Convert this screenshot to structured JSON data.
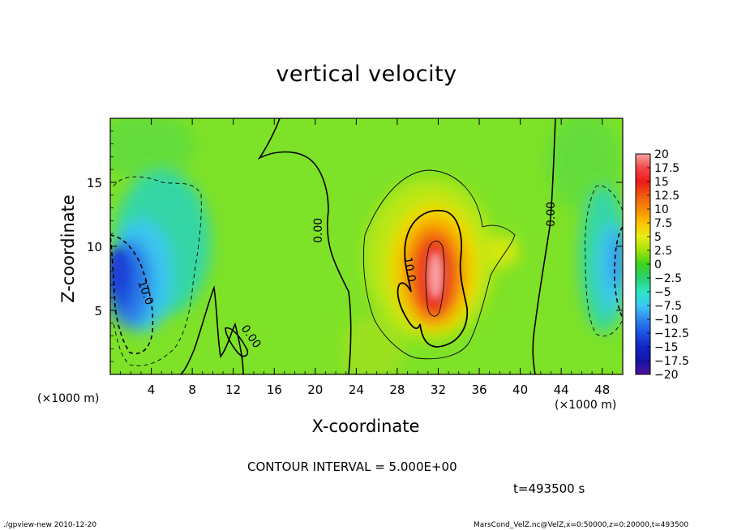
{
  "chart_data": {
    "type": "heatmap",
    "title": "vertical velocity",
    "xlabel": "X-coordinate",
    "ylabel": "Z-coordinate",
    "x_unit_label": "(×1000 m)",
    "x_ticks": [
      4,
      8,
      12,
      16,
      20,
      24,
      28,
      32,
      36,
      40,
      44,
      48
    ],
    "y_ticks": [
      5,
      10,
      15
    ],
    "xlim": [
      0,
      50
    ],
    "ylim": [
      0,
      20
    ],
    "colorbar": {
      "ticks": [
        "20",
        "17.5",
        "15",
        "12.5",
        "10",
        "7.5",
        "5",
        "2.5",
        "0",
        "−2.5",
        "−5",
        "−7.5",
        "−10",
        "−12.5",
        "−15",
        "−17.5",
        "−20"
      ],
      "colors": [
        "#f6a3a3",
        "#f04848",
        "#ee1a1a",
        "#f05a10",
        "#f58a05",
        "#fcc300",
        "#e7ee16",
        "#a2e20a",
        "#3ed21e",
        "#2ad070",
        "#2ee6c4",
        "#3cc8f2",
        "#2f86ee",
        "#1d50e2",
        "#1126c6",
        "#1414a6",
        "#50149e"
      ],
      "range": [
        -20,
        20
      ]
    },
    "contour_labels": [
      "10.0",
      "0.00",
      "0.00",
      "10.0",
      "0.00"
    ],
    "contour_interval": "CONTOUR INTERVAL = 5.000E+00",
    "time": "t=493500 s",
    "field_maxima": [
      {
        "x": 31.5,
        "z": 8,
        "value": 19
      },
      {
        "x": 2.5,
        "z": 7,
        "value": -12
      }
    ]
  },
  "footer": {
    "left": "./gpview-new   2010-12-20",
    "right": "MarsCond_VelZ.nc@VelZ,x=0:50000,z=0:20000,t=493500"
  }
}
